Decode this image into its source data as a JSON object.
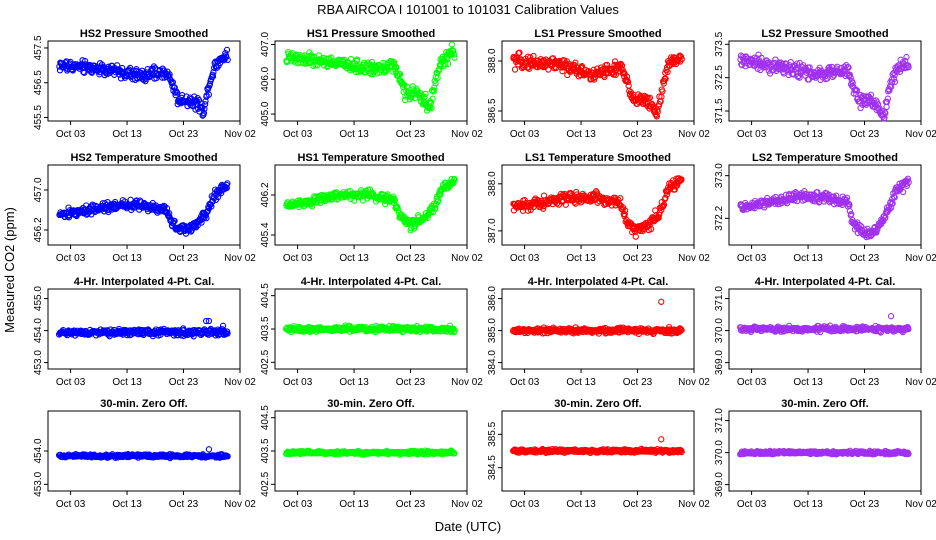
{
  "figure": {
    "title": "RBA   AIRCOA I   101001 to 101031   Calibration Values",
    "xlabel": "Date (UTC)",
    "ylabel": "Measured CO2 (ppm)"
  },
  "chart_data": [
    {
      "type": "scatter",
      "title": "HS2 Pressure Smoothed",
      "color": "#0000ff",
      "xlim": [
        -2,
        32
      ],
      "x_ticks": [
        2,
        12,
        22,
        32
      ],
      "x_tick_labels": [
        "Oct 03",
        "Oct 13",
        "Oct 23",
        "Nov 02"
      ],
      "ylim": [
        455.4,
        457.7
      ],
      "y_ticks": [
        455.5,
        456.5,
        457.5
      ],
      "y_tick_labels": [
        "455.5",
        "456.5",
        "457.5"
      ],
      "shape": [
        [
          0,
          457.0
        ],
        [
          8,
          456.9
        ],
        [
          14,
          456.7
        ],
        [
          19,
          456.8
        ],
        [
          20.5,
          456.3
        ],
        [
          21,
          456.0
        ],
        [
          23,
          456.0
        ],
        [
          24.5,
          455.9
        ],
        [
          25.5,
          455.7
        ],
        [
          26.5,
          456.4
        ],
        [
          27.5,
          457.0
        ],
        [
          29.5,
          457.3
        ]
      ],
      "noise": 0.22,
      "n": 300,
      "x_range": [
        0,
        29.8
      ],
      "outliers": []
    },
    {
      "type": "scatter",
      "title": "HS1 Pressure Smoothed",
      "color": "#00ff00",
      "xlim": [
        -2,
        32
      ],
      "x_ticks": [
        2,
        12,
        22,
        32
      ],
      "x_tick_labels": [
        "Oct 03",
        "Oct 13",
        "Oct 23",
        "Nov 02"
      ],
      "ylim": [
        404.8,
        407.1
      ],
      "y_ticks": [
        405.0,
        406.0,
        407.0
      ],
      "y_tick_labels": [
        "405.0",
        "406.0",
        "407.0"
      ],
      "shape": [
        [
          0,
          406.6
        ],
        [
          8,
          406.5
        ],
        [
          14,
          406.3
        ],
        [
          19,
          406.4
        ],
        [
          20.5,
          405.9
        ],
        [
          21,
          405.6
        ],
        [
          23,
          405.6
        ],
        [
          24.5,
          405.4
        ],
        [
          25.5,
          405.2
        ],
        [
          26.5,
          406.0
        ],
        [
          27.5,
          406.5
        ],
        [
          29.5,
          406.8
        ]
      ],
      "noise": 0.22,
      "n": 300,
      "x_range": [
        0,
        29.8
      ],
      "outliers": []
    },
    {
      "type": "scatter",
      "title": "LS1 Pressure Smoothed",
      "color": "#ff0000",
      "xlim": [
        -2,
        32
      ],
      "x_ticks": [
        2,
        12,
        22,
        32
      ],
      "x_tick_labels": [
        "Oct 03",
        "Oct 13",
        "Oct 23",
        "Nov 02"
      ],
      "ylim": [
        386.2,
        388.6
      ],
      "y_ticks": [
        386.5,
        388.0
      ],
      "y_tick_labels": [
        "386.5",
        "388.0"
      ],
      "shape": [
        [
          0,
          388.0
        ],
        [
          8,
          387.9
        ],
        [
          14,
          387.6
        ],
        [
          19,
          387.8
        ],
        [
          20.5,
          387.2
        ],
        [
          21,
          386.9
        ],
        [
          23,
          386.8
        ],
        [
          24.5,
          386.7
        ],
        [
          25.5,
          386.4
        ],
        [
          26.5,
          387.3
        ],
        [
          27.5,
          387.9
        ],
        [
          29.5,
          388.1
        ]
      ],
      "noise": 0.25,
      "n": 300,
      "x_range": [
        0,
        29.8
      ],
      "outliers": []
    },
    {
      "type": "scatter",
      "title": "LS2 Pressure Smoothed",
      "color": "#a030f0",
      "xlim": [
        -2,
        32
      ],
      "x_ticks": [
        2,
        12,
        22,
        32
      ],
      "x_tick_labels": [
        "Oct 03",
        "Oct 13",
        "Oct 23",
        "Nov 02"
      ],
      "ylim": [
        371.2,
        373.6
      ],
      "y_ticks": [
        371.5,
        372.5,
        373.5
      ],
      "y_tick_labels": [
        "371.5",
        "372.5",
        "373.5"
      ],
      "shape": [
        [
          0,
          373.0
        ],
        [
          8,
          372.8
        ],
        [
          14,
          372.6
        ],
        [
          19,
          372.7
        ],
        [
          20.5,
          372.0
        ],
        [
          21,
          371.8
        ],
        [
          23,
          371.8
        ],
        [
          24.5,
          371.6
        ],
        [
          25.5,
          371.4
        ],
        [
          26.5,
          372.2
        ],
        [
          27.5,
          372.7
        ],
        [
          29.5,
          372.9
        ]
      ],
      "noise": 0.25,
      "n": 300,
      "x_range": [
        0,
        29.8
      ],
      "outliers": []
    },
    {
      "type": "scatter",
      "title": "HS2 Temperature Smoothed",
      "color": "#0000ff",
      "xlim": [
        -2,
        32
      ],
      "x_ticks": [
        2,
        12,
        22,
        32
      ],
      "x_tick_labels": [
        "Oct 03",
        "Oct 13",
        "Oct 23",
        "Nov 02"
      ],
      "ylim": [
        455.9,
        457.5
      ],
      "y_ticks": [
        456.2,
        457.0
      ],
      "y_tick_labels": [
        "456.2",
        "457.0"
      ],
      "shape": [
        [
          0,
          456.5
        ],
        [
          5,
          456.6
        ],
        [
          10,
          456.7
        ],
        [
          15,
          456.7
        ],
        [
          19,
          456.6
        ],
        [
          20,
          456.3
        ],
        [
          22,
          456.2
        ],
        [
          24,
          456.3
        ],
        [
          26,
          456.5
        ],
        [
          27.5,
          456.9
        ],
        [
          29.8,
          457.1
        ]
      ],
      "noise": 0.12,
      "n": 300,
      "x_range": [
        0,
        29.8
      ],
      "outliers": []
    },
    {
      "type": "scatter",
      "title": "HS1 Temperature Smoothed",
      "color": "#00ff00",
      "xlim": [
        -2,
        32
      ],
      "x_ticks": [
        2,
        12,
        22,
        32
      ],
      "x_tick_labels": [
        "Oct 03",
        "Oct 13",
        "Oct 23",
        "Nov 02"
      ],
      "ylim": [
        405.2,
        406.8
      ],
      "y_ticks": [
        405.4,
        406.2
      ],
      "y_tick_labels": [
        "405.4",
        "406.2"
      ],
      "shape": [
        [
          0,
          406.0
        ],
        [
          5,
          406.1
        ],
        [
          10,
          406.2
        ],
        [
          15,
          406.2
        ],
        [
          19,
          406.1
        ],
        [
          20,
          405.8
        ],
        [
          22,
          405.6
        ],
        [
          24,
          405.7
        ],
        [
          26,
          405.9
        ],
        [
          27.5,
          406.3
        ],
        [
          29.8,
          406.5
        ]
      ],
      "noise": 0.12,
      "n": 300,
      "x_range": [
        0,
        29.8
      ],
      "outliers": []
    },
    {
      "type": "scatter",
      "title": "LS1 Temperature Smoothed",
      "color": "#ff0000",
      "xlim": [
        -2,
        32
      ],
      "x_ticks": [
        2,
        12,
        22,
        32
      ],
      "x_tick_labels": [
        "Oct 03",
        "Oct 13",
        "Oct 23",
        "Nov 02"
      ],
      "ylim": [
        386.7,
        388.4
      ],
      "y_ticks": [
        387.0,
        388.0
      ],
      "y_tick_labels": [
        "387.0",
        "388.0"
      ],
      "shape": [
        [
          0,
          387.5
        ],
        [
          5,
          387.6
        ],
        [
          10,
          387.7
        ],
        [
          15,
          387.7
        ],
        [
          19,
          387.6
        ],
        [
          20,
          387.2
        ],
        [
          22,
          387.0
        ],
        [
          24,
          387.1
        ],
        [
          26,
          387.4
        ],
        [
          27.5,
          387.9
        ],
        [
          29.8,
          388.1
        ]
      ],
      "noise": 0.15,
      "n": 300,
      "x_range": [
        0,
        29.8
      ],
      "outliers": []
    },
    {
      "type": "scatter",
      "title": "LS2 Temperature Smoothed",
      "color": "#a030f0",
      "xlim": [
        -2,
        32
      ],
      "x_ticks": [
        2,
        12,
        22,
        32
      ],
      "x_tick_labels": [
        "Oct 03",
        "Oct 13",
        "Oct 23",
        "Nov 02"
      ],
      "ylim": [
        371.7,
        373.2
      ],
      "y_ticks": [
        372.2,
        373.0
      ],
      "y_tick_labels": [
        "372.2",
        "373.0"
      ],
      "shape": [
        [
          0,
          372.4
        ],
        [
          5,
          372.5
        ],
        [
          10,
          372.6
        ],
        [
          15,
          372.6
        ],
        [
          19,
          372.5
        ],
        [
          20,
          372.1
        ],
        [
          22,
          371.9
        ],
        [
          24,
          372.0
        ],
        [
          26,
          372.3
        ],
        [
          27.5,
          372.7
        ],
        [
          29.8,
          372.9
        ]
      ],
      "noise": 0.12,
      "n": 300,
      "x_range": [
        0,
        29.8
      ],
      "outliers": []
    },
    {
      "type": "scatter",
      "title": "4-Hr. Interpolated 4-Pt. Cal.",
      "color": "#0000ff",
      "xlim": [
        -2,
        32
      ],
      "x_ticks": [
        2,
        12,
        22,
        32
      ],
      "x_tick_labels": [
        "Oct 03",
        "Oct 13",
        "Oct 23",
        "Nov 02"
      ],
      "ylim": [
        452.8,
        455.3
      ],
      "y_ticks": [
        453.0,
        454.0,
        455.0
      ],
      "y_tick_labels": [
        "453.0",
        "454.0",
        "455.0"
      ],
      "shape": [
        [
          0,
          453.95
        ],
        [
          29.8,
          453.95
        ]
      ],
      "noise": 0.12,
      "n": 300,
      "x_range": [
        0,
        29.8
      ],
      "outliers": [
        [
          26,
          454.3
        ],
        [
          26.5,
          454.3
        ],
        [
          29,
          454.15
        ]
      ]
    },
    {
      "type": "scatter",
      "title": "4-Hr. Interpolated 4-Pt. Cal.",
      "color": "#00ff00",
      "xlim": [
        -2,
        32
      ],
      "x_ticks": [
        2,
        12,
        22,
        32
      ],
      "x_tick_labels": [
        "Oct 03",
        "Oct 13",
        "Oct 23",
        "Nov 02"
      ],
      "ylim": [
        402.3,
        404.7
      ],
      "y_ticks": [
        402.5,
        403.5,
        404.5
      ],
      "y_tick_labels": [
        "402.5",
        "403.5",
        "404.5"
      ],
      "shape": [
        [
          0,
          403.5
        ],
        [
          29.8,
          403.5
        ]
      ],
      "noise": 0.1,
      "n": 300,
      "x_range": [
        0,
        29.8
      ],
      "outliers": []
    },
    {
      "type": "scatter",
      "title": "4-Hr. Interpolated 4-Pt. Cal.",
      "color": "#ff0000",
      "xlim": [
        -2,
        32
      ],
      "x_ticks": [
        2,
        12,
        22,
        32
      ],
      "x_tick_labels": [
        "Oct 03",
        "Oct 13",
        "Oct 23",
        "Nov 02"
      ],
      "ylim": [
        383.8,
        386.3
      ],
      "y_ticks": [
        384.0,
        385.0,
        386.0
      ],
      "y_tick_labels": [
        "384.0",
        "385.0",
        "386.0"
      ],
      "shape": [
        [
          0,
          385.0
        ],
        [
          29.8,
          385.0
        ]
      ],
      "noise": 0.1,
      "n": 300,
      "x_range": [
        0,
        29.8
      ],
      "outliers": [
        [
          26.2,
          385.9
        ]
      ]
    },
    {
      "type": "scatter",
      "title": "4-Hr. Interpolated 4-Pt. Cal.",
      "color": "#a030f0",
      "xlim": [
        -2,
        32
      ],
      "x_ticks": [
        2,
        12,
        22,
        32
      ],
      "x_tick_labels": [
        "Oct 03",
        "Oct 13",
        "Oct 23",
        "Nov 02"
      ],
      "ylim": [
        368.8,
        371.3
      ],
      "y_ticks": [
        369.0,
        370.0,
        371.0
      ],
      "y_tick_labels": [
        "369.0",
        "370.0",
        "371.0"
      ],
      "shape": [
        [
          0,
          370.05
        ],
        [
          29.8,
          370.05
        ]
      ],
      "noise": 0.1,
      "n": 300,
      "x_range": [
        0,
        29.8
      ],
      "outliers": [
        [
          26.7,
          370.45
        ]
      ]
    },
    {
      "type": "scatter",
      "title": "30-min. Zero Off.",
      "color": "#0000ff",
      "xlim": [
        -2,
        32
      ],
      "x_ticks": [
        2,
        12,
        22,
        32
      ],
      "x_tick_labels": [
        "Oct 03",
        "Oct 13",
        "Oct 23",
        "Nov 02"
      ],
      "ylim": [
        452.8,
        455.2
      ],
      "y_ticks": [
        453.0,
        454.0
      ],
      "y_tick_labels": [
        "453.0",
        "454.0"
      ],
      "shape": [
        [
          0,
          453.85
        ],
        [
          29.8,
          453.85
        ]
      ],
      "noise": 0.06,
      "n": 300,
      "x_range": [
        0,
        29.8
      ],
      "outliers": [
        [
          26.5,
          454.05
        ]
      ]
    },
    {
      "type": "scatter",
      "title": "30-min. Zero Off.",
      "color": "#00ff00",
      "xlim": [
        -2,
        32
      ],
      "x_ticks": [
        2,
        12,
        22,
        32
      ],
      "x_tick_labels": [
        "Oct 03",
        "Oct 13",
        "Oct 23",
        "Nov 02"
      ],
      "ylim": [
        402.3,
        404.7
      ],
      "y_ticks": [
        402.5,
        403.5,
        404.5
      ],
      "y_tick_labels": [
        "402.5",
        "403.5",
        "404.5"
      ],
      "shape": [
        [
          0,
          403.45
        ],
        [
          29.8,
          403.45
        ]
      ],
      "noise": 0.06,
      "n": 300,
      "x_range": [
        0,
        29.8
      ],
      "outliers": []
    },
    {
      "type": "scatter",
      "title": "30-min. Zero Off.",
      "color": "#ff0000",
      "xlim": [
        -2,
        32
      ],
      "x_ticks": [
        2,
        12,
        22,
        32
      ],
      "x_tick_labels": [
        "Oct 03",
        "Oct 13",
        "Oct 23",
        "Nov 02"
      ],
      "ylim": [
        383.8,
        386.2
      ],
      "y_ticks": [
        384.5,
        385.5
      ],
      "y_tick_labels": [
        "384.5",
        "385.5"
      ],
      "shape": [
        [
          0,
          385.0
        ],
        [
          29.8,
          385.0
        ]
      ],
      "noise": 0.06,
      "n": 300,
      "x_range": [
        0,
        29.8
      ],
      "outliers": [
        [
          26.2,
          385.35
        ]
      ]
    },
    {
      "type": "scatter",
      "title": "30-min. Zero Off.",
      "color": "#a030f0",
      "xlim": [
        -2,
        32
      ],
      "x_ticks": [
        2,
        12,
        22,
        32
      ],
      "x_tick_labels": [
        "Oct 03",
        "Oct 13",
        "Oct 23",
        "Nov 02"
      ],
      "ylim": [
        368.8,
        371.3
      ],
      "y_ticks": [
        369.0,
        370.0,
        371.0
      ],
      "y_tick_labels": [
        "369.0",
        "370.0",
        "371.0"
      ],
      "shape": [
        [
          0,
          370.0
        ],
        [
          29.8,
          370.0
        ]
      ],
      "noise": 0.06,
      "n": 300,
      "x_range": [
        0,
        29.8
      ],
      "outliers": []
    }
  ]
}
